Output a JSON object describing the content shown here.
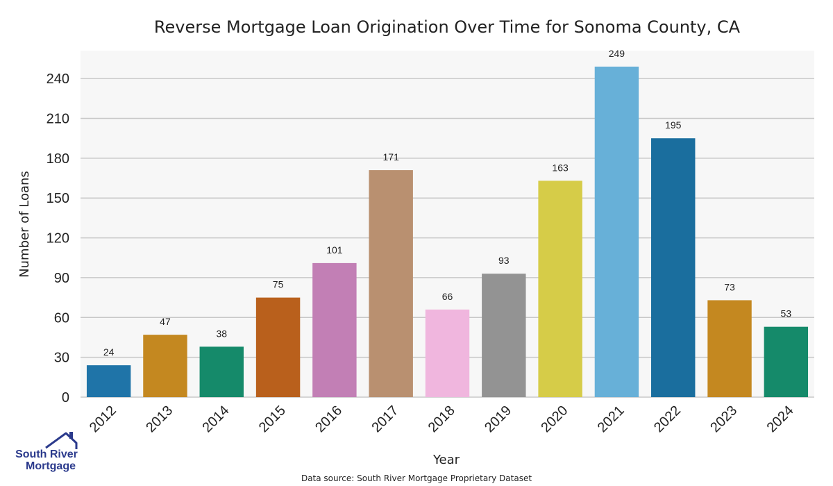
{
  "chart_data": {
    "type": "bar",
    "title": "Reverse Mortgage Loan Origination Over Time for Sonoma County, CA",
    "xlabel": "Year",
    "ylabel": "Number of Loans",
    "categories": [
      "2012",
      "2013",
      "2014",
      "2015",
      "2016",
      "2017",
      "2018",
      "2019",
      "2020",
      "2021",
      "2022",
      "2023",
      "2024"
    ],
    "values": [
      24,
      47,
      38,
      75,
      101,
      171,
      66,
      93,
      163,
      249,
      195,
      73,
      53
    ],
    "colors": [
      "#1f74a8",
      "#c48820",
      "#158a6a",
      "#b9601c",
      "#c27fb5",
      "#b99070",
      "#f0b6de",
      "#939393",
      "#d6cc48",
      "#67b0d8",
      "#1a6e9e",
      "#c48820",
      "#158a6a"
    ],
    "yticks": [
      0,
      30,
      60,
      90,
      120,
      150,
      180,
      210,
      240
    ],
    "ylim": [
      0,
      261
    ],
    "grid": true,
    "background": "#f7f7f7",
    "gridColor": "#c8c8c8"
  },
  "source_note": "Data source: South River Mortgage Proprietary Dataset",
  "logo": {
    "line1": "South River",
    "line2": "Mortgage",
    "color": "#2b3a8c"
  }
}
